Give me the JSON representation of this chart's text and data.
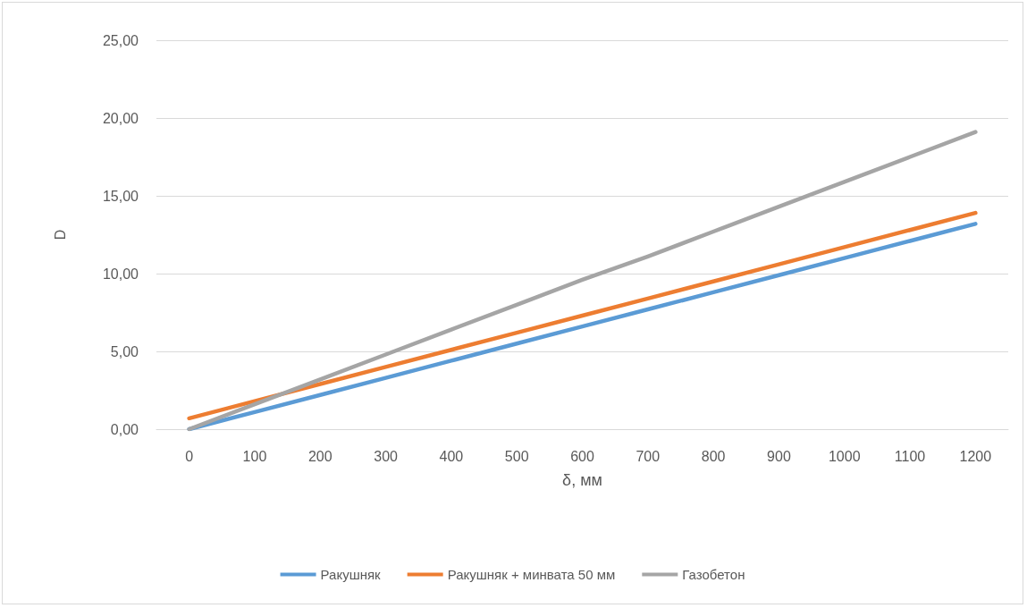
{
  "chart_data": {
    "type": "line",
    "xlabel": "δ, мм",
    "ylabel": "D",
    "categories": [
      "0",
      "100",
      "200",
      "300",
      "400",
      "500",
      "600",
      "700",
      "800",
      "900",
      "1000",
      "1100",
      "1200"
    ],
    "series": [
      {
        "name": "Ракушняк",
        "color": "#5b9bd5",
        "values": [
          0,
          1.1,
          2.2,
          3.3,
          4.4,
          5.5,
          6.6,
          7.7,
          8.8,
          9.9,
          11,
          12.1,
          13.2
        ]
      },
      {
        "name": "Ракушняк + минвата 50 мм",
        "color": "#ed7d31",
        "values": [
          0.7,
          1.8,
          2.9,
          4.0,
          5.1,
          6.2,
          7.3,
          8.4,
          9.5,
          10.6,
          11.7,
          12.8,
          13.9
        ]
      },
      {
        "name": "Газобетон",
        "color": "#a5a5a5",
        "values": [
          0,
          1.6,
          3.2,
          4.8,
          6.4,
          8.0,
          9.6,
          11.1,
          12.7,
          14.3,
          15.9,
          17.5,
          19.1
        ]
      }
    ],
    "ylim": [
      0,
      25
    ],
    "yticks": [
      {
        "value": 0,
        "label": "0,00"
      },
      {
        "value": 5,
        "label": "5,00"
      },
      {
        "value": 10,
        "label": "10,00"
      },
      {
        "value": 15,
        "label": "15,00"
      },
      {
        "value": 20,
        "label": "20,00"
      },
      {
        "value": 25,
        "label": "25,00"
      }
    ],
    "grid": "y",
    "legend": "bottom",
    "marker": "none",
    "line_style": "solid"
  }
}
